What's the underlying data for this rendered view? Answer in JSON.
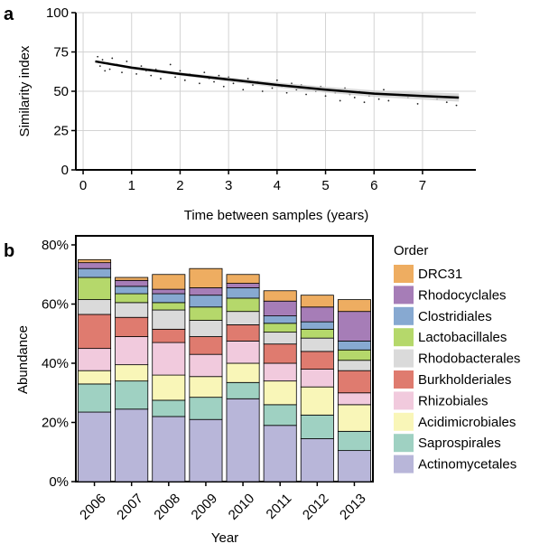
{
  "chart_data": [
    {
      "panel": "a",
      "type": "scatter",
      "xlabel": "Time between samples (years)",
      "ylabel": "Similarity index",
      "xlim": [
        -0.15,
        8.1
      ],
      "ylim": [
        0,
        100
      ],
      "xticks": [
        0,
        1,
        2,
        3,
        4,
        5,
        6,
        7
      ],
      "yticks": [
        0,
        25,
        50,
        75,
        100
      ],
      "grid": true,
      "trend": {
        "x": [
          0.25,
          1,
          2,
          3,
          4,
          5,
          6,
          7,
          7.75
        ],
        "y": [
          69,
          65,
          61,
          57.5,
          54,
          51,
          48.5,
          47,
          46
        ]
      },
      "points": {
        "x": [
          0.3,
          0.35,
          0.4,
          0.45,
          0.5,
          0.55,
          0.6,
          0.7,
          0.8,
          0.9,
          1.0,
          1.1,
          1.2,
          1.3,
          1.4,
          1.5,
          1.6,
          1.7,
          1.8,
          1.9,
          2.0,
          2.1,
          2.2,
          2.3,
          2.4,
          2.5,
          2.6,
          2.7,
          2.8,
          2.9,
          3.0,
          3.1,
          3.2,
          3.3,
          3.4,
          3.5,
          3.6,
          3.7,
          3.8,
          3.9,
          4.0,
          4.1,
          4.2,
          4.3,
          4.4,
          4.5,
          4.6,
          4.7,
          4.8,
          4.9,
          5.0,
          5.1,
          5.2,
          5.3,
          5.4,
          5.5,
          5.6,
          5.7,
          5.8,
          5.9,
          6.0,
          6.1,
          6.2,
          6.3,
          6.5,
          6.7,
          6.9,
          7.1,
          7.3,
          7.5,
          7.7
        ],
        "y": [
          72,
          66,
          70,
          63,
          68,
          64,
          71,
          67,
          62,
          69,
          65,
          61,
          66,
          63,
          60,
          64,
          58,
          62,
          67,
          59,
          63,
          57,
          61,
          60,
          55,
          62,
          58,
          56,
          60,
          53,
          59,
          55,
          57,
          51,
          58,
          54,
          56,
          50,
          55,
          52,
          57,
          53,
          49,
          55,
          51,
          54,
          48,
          52,
          50,
          53,
          47,
          51,
          49,
          44,
          52,
          48,
          46,
          50,
          43,
          47,
          49,
          45,
          51,
          44,
          48,
          46,
          42,
          47,
          45,
          43,
          41
        ]
      }
    },
    {
      "panel": "b",
      "type": "bar",
      "stacked": true,
      "xlabel": "Year",
      "ylabel": "Abundance",
      "ylim": [
        0,
        80
      ],
      "yticks": [
        "0%",
        "20%",
        "40%",
        "60%",
        "80%"
      ],
      "categories": [
        "2006",
        "2007",
        "2008",
        "2009",
        "2010",
        "2011",
        "2012",
        "2013"
      ],
      "legend_title": "Order",
      "series": [
        {
          "name": "Actinomycetales",
          "color": "#b8b6d9",
          "values": [
            23.5,
            24.5,
            22,
            21,
            28,
            19,
            14.5,
            10.5
          ]
        },
        {
          "name": "Saprospirales",
          "color": "#9fd1c2",
          "values": [
            9.5,
            9.5,
            5.5,
            7.5,
            5.5,
            7,
            8,
            6.5
          ]
        },
        {
          "name": "Acidimicrobiales",
          "color": "#f9f6b8",
          "values": [
            4.5,
            5.5,
            8.5,
            7,
            6.5,
            8,
            9.5,
            9
          ]
        },
        {
          "name": "Rhizobiales",
          "color": "#f1cadd",
          "values": [
            7.5,
            9.5,
            11,
            7.5,
            7.5,
            6,
            6,
            4
          ]
        },
        {
          "name": "Burkholderiales",
          "color": "#df7b6f",
          "values": [
            11.5,
            6.5,
            4.5,
            6,
            5.5,
            6.5,
            6,
            7.5
          ]
        },
        {
          "name": "Rhodobacterales",
          "color": "#dadada",
          "values": [
            5,
            5,
            6.5,
            5.5,
            4.5,
            4,
            4.5,
            3.5
          ]
        },
        {
          "name": "Lactobacillales",
          "color": "#b5d86b",
          "values": [
            7.5,
            3,
            2.5,
            4.5,
            4.5,
            3,
            3,
            3.5
          ]
        },
        {
          "name": "Clostridiales",
          "color": "#87a9d1",
          "values": [
            3,
            2.5,
            3,
            4,
            3.5,
            2.5,
            2.5,
            3
          ]
        },
        {
          "name": "Rhodocyclales",
          "color": "#a67db7",
          "values": [
            2,
            2,
            1.5,
            2.5,
            1.5,
            5,
            5,
            10
          ]
        },
        {
          "name": "DRC31",
          "color": "#eead61",
          "values": [
            1,
            1,
            5,
            6.5,
            3,
            3.5,
            4,
            4
          ]
        }
      ]
    }
  ]
}
